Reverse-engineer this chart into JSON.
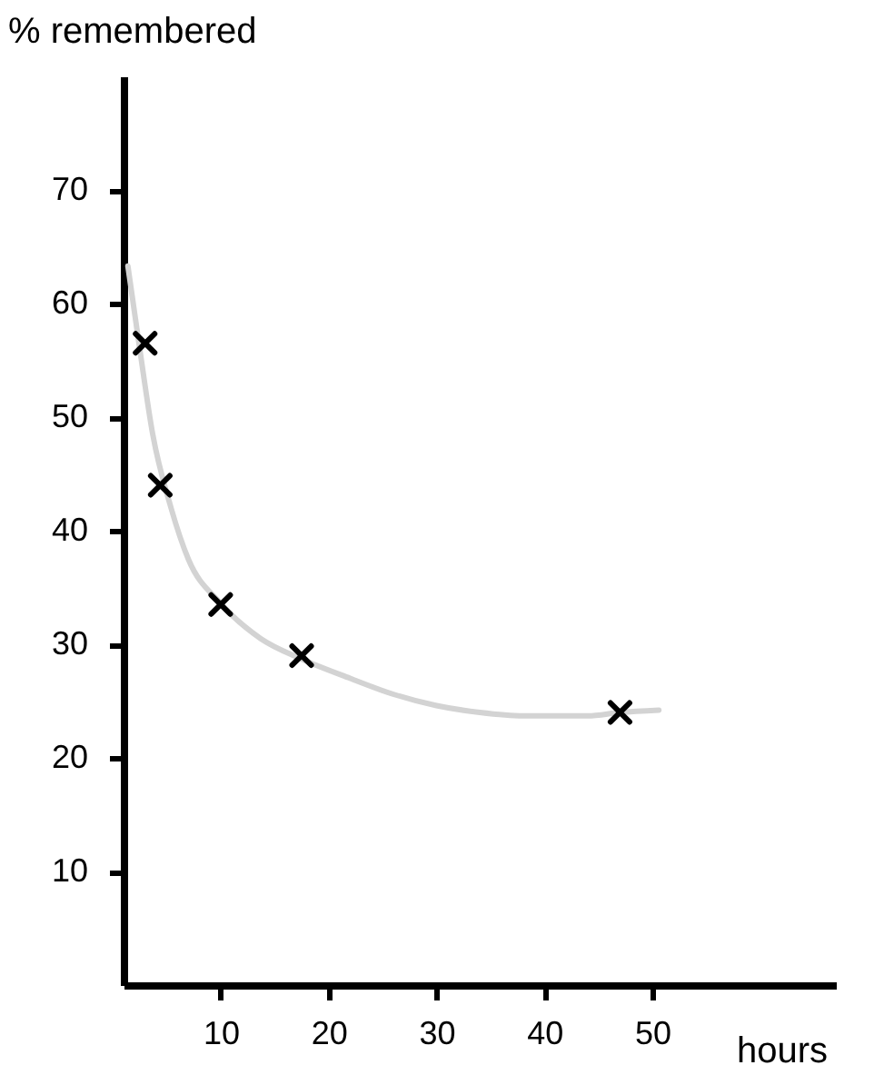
{
  "chart_data": {
    "type": "scatter",
    "xlabel": "hours",
    "ylabel": "% remembered",
    "xlim": [
      1,
      67
    ],
    "ylim": [
      0,
      80
    ],
    "xticks": [
      10,
      20,
      30,
      40,
      50
    ],
    "yticks": [
      10,
      20,
      30,
      40,
      50,
      60,
      70
    ],
    "series": [
      {
        "color": "#000000",
        "marker": "cross",
        "x": [
          3,
          4.4,
          10,
          17.5,
          47
        ],
        "values": [
          56.5,
          44,
          33.5,
          29,
          24
        ]
      },
      {
        "type": "line",
        "color": "#d3d3d3",
        "marker": "none",
        "line_style": "solid",
        "x": [
          1.4,
          2.5,
          3.7,
          5.4,
          7,
          9.9,
          13.7,
          17.5,
          22,
          26,
          30,
          34,
          38,
          44,
          47,
          50.6
        ],
        "values": [
          63.3,
          56,
          48.5,
          42,
          37.5,
          33.7,
          30.5,
          28.7,
          27,
          25.6,
          24.6,
          24,
          23.7,
          23.7,
          24,
          24.2
        ]
      }
    ]
  }
}
